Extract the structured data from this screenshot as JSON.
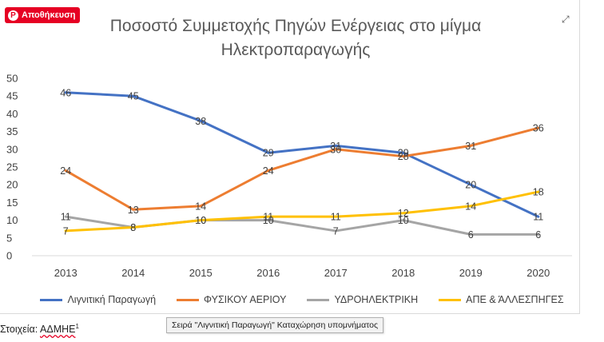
{
  "save_button": {
    "label": "Αποθήκευση",
    "icon": "pinterest-icon"
  },
  "expand_icon": "expand-icon",
  "tooltip": {
    "text": "Σειρά \"Λιγνιτική Παραγωγή\" Καταχώρηση υπομνήματος"
  },
  "source": {
    "prefix": "Στοιχεία: ",
    "name": "ΑΔΜΗΕ",
    "sup": "1"
  },
  "chart_data": {
    "type": "line",
    "title": "Ποσοστό Συμμετοχής Πηγών Ενέργειας στο μίγμα Ηλεκτροπαραγωγής",
    "title_lines": [
      "Ποσοστό Συμμετοχής Πηγών Ενέργειας στο μίγμα",
      "Ηλεκτροπαραγωγής"
    ],
    "categories": [
      "2013",
      "2014",
      "2015",
      "2016",
      "2017",
      "2018",
      "2019",
      "2020"
    ],
    "ylim": [
      0,
      50
    ],
    "yticks": [
      0,
      5,
      10,
      15,
      20,
      25,
      30,
      35,
      40,
      45,
      50
    ],
    "grid": false,
    "legend_position": "bottom",
    "series": [
      {
        "name": "Λιγνιτική Παραγωγή",
        "color": "#4472c4",
        "values": [
          46,
          45,
          38,
          29,
          31,
          29,
          20,
          11
        ]
      },
      {
        "name": "ΦΥΣΙΚΟΥ ΑΕΡΙΟΥ",
        "color": "#ed7d31",
        "values": [
          24,
          13,
          14,
          24,
          30,
          28,
          31,
          36
        ]
      },
      {
        "name": "ΥΔΡΟΗΛΕΚΤΡΙΚΗ",
        "color": "#a5a5a5",
        "values": [
          11,
          8,
          10,
          10,
          7,
          10,
          6,
          6
        ]
      },
      {
        "name": "ΑΠΕ & ΆΛΛΕΣΠΗΓΕΣ",
        "color": "#ffc000",
        "values": [
          7,
          8,
          10,
          11,
          11,
          12,
          14,
          18
        ]
      }
    ]
  }
}
